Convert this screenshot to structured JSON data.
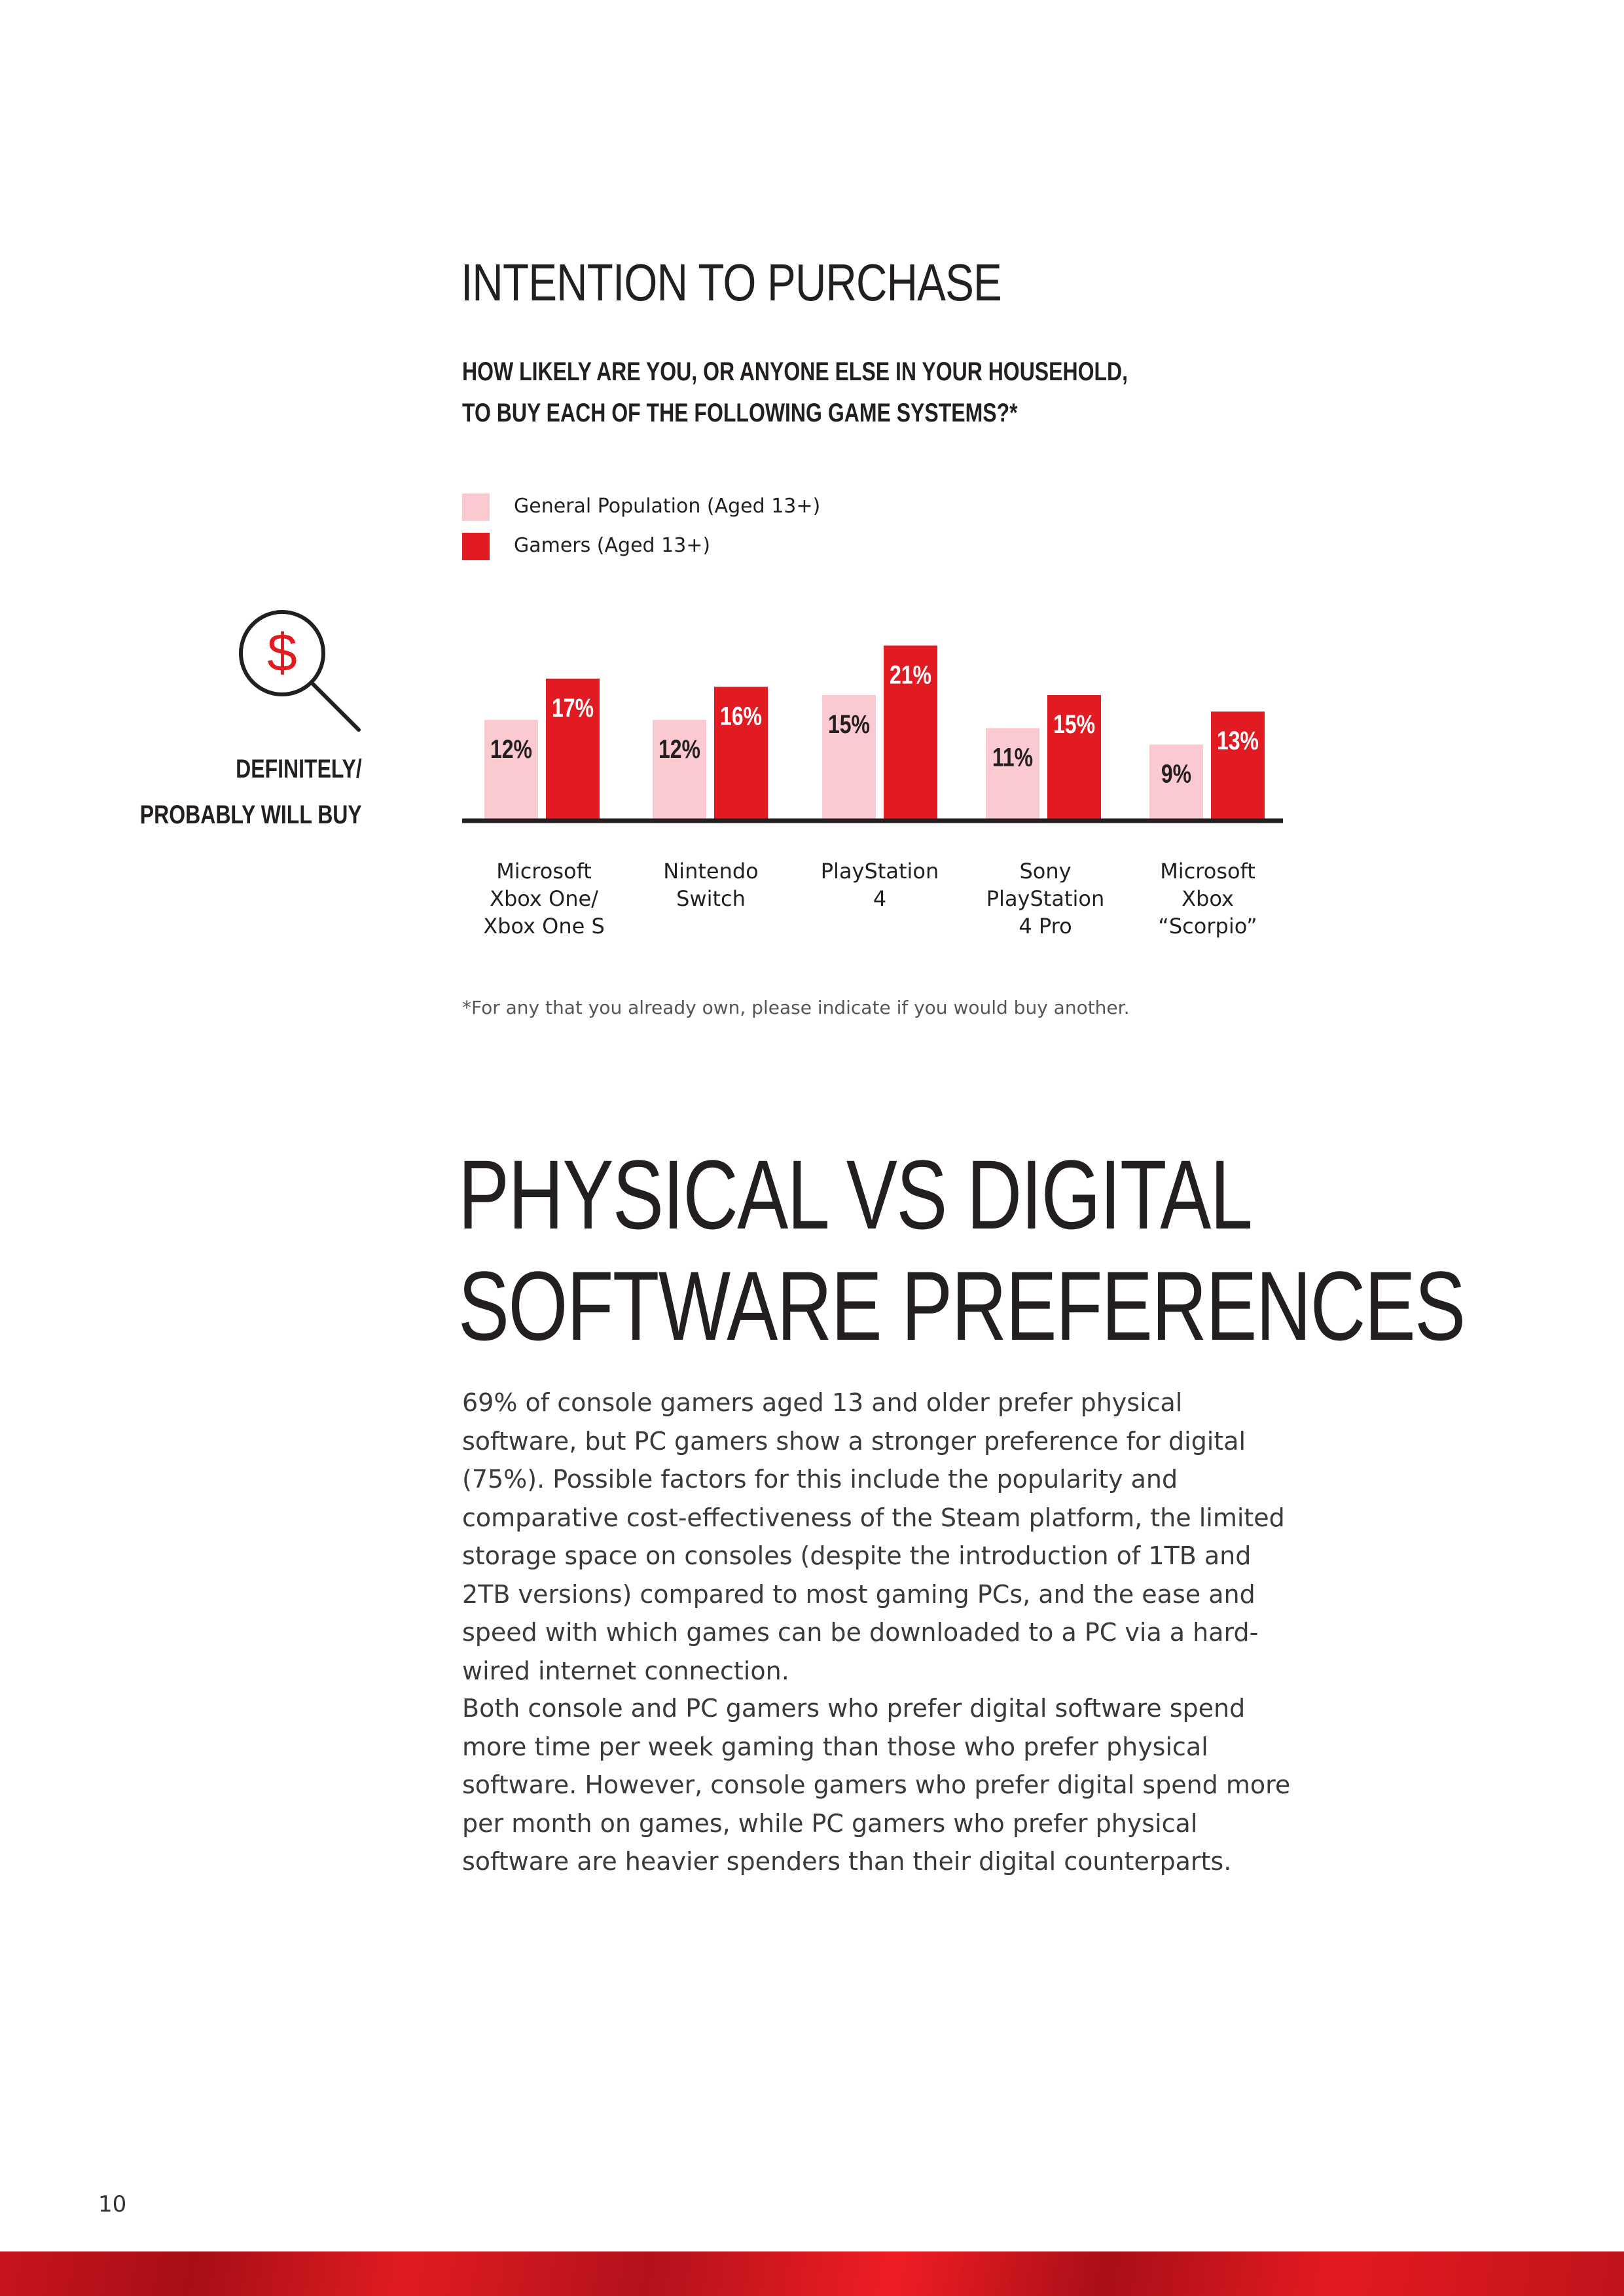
{
  "section_title": "INTENTION TO PURCHASE",
  "question": {
    "line1": "HOW LIKELY ARE YOU, OR ANYONE ELSE IN YOUR HOUSEHOLD,",
    "line2": "TO BUY EACH OF THE FOLLOWING GAME SYSTEMS?*"
  },
  "metric_label": {
    "line1": "DEFINITELY/",
    "line2": "PROBABLY WILL BUY"
  },
  "icon": "magnifier-dollar-icon",
  "colors": {
    "general": "#fbc9d0",
    "gamers": "#e21b23",
    "axis": "#231f20",
    "accent_icon": "#e21b23"
  },
  "chart_data": {
    "type": "bar",
    "categories": [
      "Microsoft Xbox One/ Xbox One S",
      "Nintendo Switch",
      "PlayStation 4",
      "Sony PlayStation 4 Pro",
      "Microsoft Xbox “Scorpio”"
    ],
    "category_lines": [
      [
        "Microsoft",
        "Xbox One/",
        "Xbox One S"
      ],
      [
        "Nintendo",
        "Switch"
      ],
      [
        "PlayStation",
        "4"
      ],
      [
        "Sony",
        "PlayStation",
        "4 Pro"
      ],
      [
        "Microsoft",
        "Xbox",
        "“Scorpio”"
      ]
    ],
    "series": [
      {
        "name": "General Population (Aged 13+)",
        "values": [
          12,
          12,
          15,
          11,
          9
        ],
        "labels": [
          "12%",
          "12%",
          "15%",
          "11%",
          "9%"
        ]
      },
      {
        "name": "Gamers (Aged 13+)",
        "values": [
          17,
          16,
          21,
          15,
          13
        ],
        "labels": [
          "17%",
          "16%",
          "21%",
          "15%",
          "13%"
        ]
      }
    ],
    "ylim": [
      0,
      21
    ],
    "legend_position": "top-left",
    "grid": false
  },
  "footnote": "*For any that you already own, please indicate if you would buy another.",
  "heading2": {
    "line1": "PHYSICAL VS DIGITAL",
    "line2": "SOFTWARE PREFERENCES"
  },
  "paragraph1": "69% of console gamers aged 13 and older prefer physical software, but PC gamers show a stronger preference for digital (75%). Possible factors for this include the popularity and comparative cost-effectiveness of the Steam platform, the limited storage space on consoles (despite the introduction of 1TB and 2TB versions) compared to most gaming PCs, and the ease and speed with which games can be downloaded to a PC via a hard-wired internet connection.",
  "paragraph2": "Both console and PC gamers who prefer digital software spend more time per week gaming than those who prefer physical software. However, console gamers who prefer digital spend more per month on games, while PC gamers who prefer physical software are heavier spenders than their digital counterparts.",
  "page_number": "10"
}
